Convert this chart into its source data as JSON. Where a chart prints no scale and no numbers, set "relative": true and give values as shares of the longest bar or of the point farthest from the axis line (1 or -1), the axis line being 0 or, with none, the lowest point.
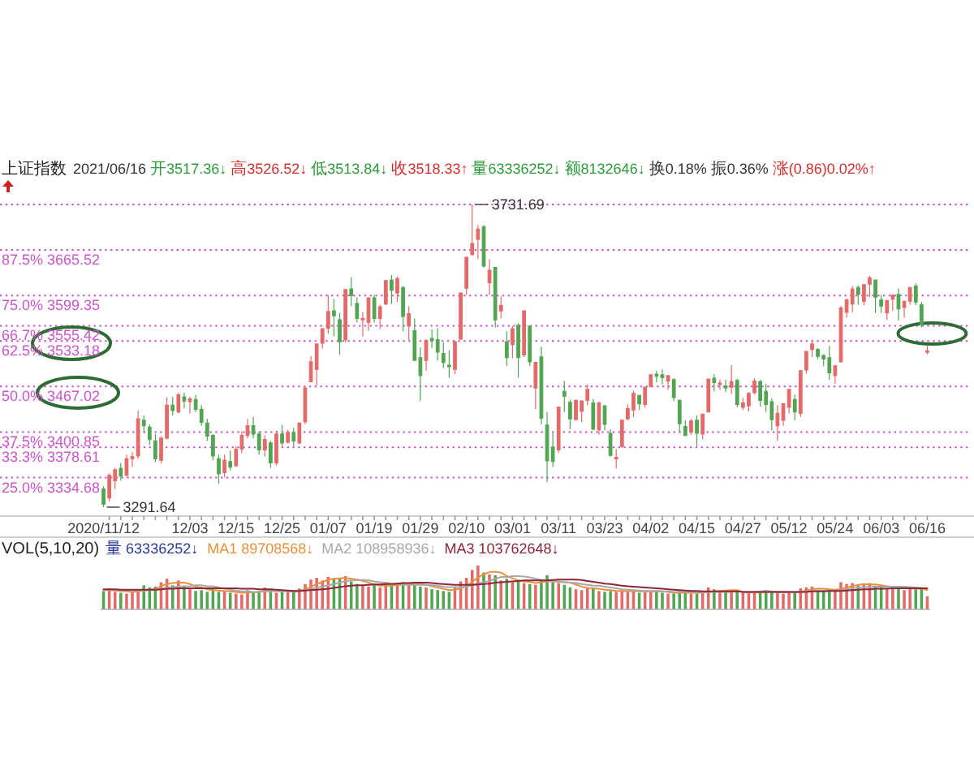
{
  "chart_data": [
    {
      "type": "candlestick",
      "title": "上证指数",
      "tick_labels": "x",
      "categories": [
        "2020/11/12",
        null,
        null,
        null,
        null,
        null,
        null,
        null,
        null,
        null,
        null,
        null,
        null,
        null,
        null,
        "12/03",
        null,
        null,
        null,
        null,
        null,
        null,
        null,
        "12/15",
        null,
        null,
        null,
        null,
        null,
        null,
        null,
        "12/25",
        null,
        null,
        null,
        null,
        null,
        null,
        null,
        "01/07",
        null,
        null,
        null,
        null,
        null,
        null,
        null,
        "01/19",
        null,
        null,
        null,
        null,
        null,
        null,
        null,
        "01/29",
        null,
        null,
        null,
        null,
        null,
        null,
        null,
        "02/10",
        null,
        null,
        null,
        null,
        null,
        null,
        null,
        "03/01",
        null,
        null,
        null,
        null,
        null,
        null,
        null,
        "03/11",
        null,
        null,
        null,
        null,
        null,
        null,
        null,
        "03/23",
        null,
        null,
        null,
        null,
        null,
        null,
        null,
        "04/02",
        null,
        null,
        null,
        null,
        null,
        null,
        null,
        "04/15",
        null,
        null,
        null,
        null,
        null,
        null,
        null,
        "04/27",
        null,
        null,
        null,
        null,
        null,
        null,
        null,
        "05/12",
        null,
        null,
        null,
        null,
        null,
        null,
        null,
        "05/24",
        null,
        null,
        null,
        null,
        null,
        null,
        null,
        "06/03",
        null,
        null,
        null,
        null,
        null,
        null,
        null,
        "06/16"
      ],
      "ohlc": [
        [
          3318,
          3322,
          3291.64,
          3296
        ],
        [
          3305,
          3341,
          3300,
          3338
        ],
        [
          3330,
          3349,
          3318,
          3346
        ],
        [
          3348,
          3356,
          3330,
          3337
        ],
        [
          3338,
          3368,
          3336,
          3362
        ],
        [
          3362,
          3372,
          3350,
          3365
        ],
        [
          3366,
          3432,
          3362,
          3420
        ],
        [
          3418,
          3425,
          3400,
          3410
        ],
        [
          3408,
          3412,
          3382,
          3390
        ],
        [
          3388,
          3398,
          3357,
          3362
        ],
        [
          3360,
          3395,
          3355,
          3392
        ],
        [
          3392,
          3451,
          3390,
          3440
        ],
        [
          3440,
          3452,
          3425,
          3432
        ],
        [
          3430,
          3458,
          3428,
          3455
        ],
        [
          3452,
          3458,
          3436,
          3446
        ],
        [
          3445,
          3452,
          3428,
          3449
        ],
        [
          3448,
          3455,
          3430,
          3434
        ],
        [
          3434,
          3440,
          3410,
          3415
        ],
        [
          3414,
          3420,
          3388,
          3395
        ],
        [
          3396,
          3398,
          3360,
          3366
        ],
        [
          3362,
          3368,
          3326,
          3340
        ],
        [
          3342,
          3368,
          3335,
          3360
        ],
        [
          3358,
          3374,
          3345,
          3350
        ],
        [
          3352,
          3380,
          3350,
          3376
        ],
        [
          3376,
          3402,
          3370,
          3396
        ],
        [
          3396,
          3420,
          3392,
          3410
        ],
        [
          3410,
          3423,
          3392,
          3398
        ],
        [
          3398,
          3402,
          3368,
          3375
        ],
        [
          3375,
          3396,
          3365,
          3390
        ],
        [
          3385,
          3388,
          3349,
          3356
        ],
        [
          3356,
          3403,
          3352,
          3398
        ],
        [
          3398,
          3411,
          3380,
          3385
        ],
        [
          3386,
          3404,
          3384,
          3400
        ],
        [
          3400,
          3407,
          3380,
          3388
        ],
        [
          3385,
          3415,
          3383,
          3414
        ],
        [
          3416,
          3467,
          3412,
          3465
        ],
        [
          3474,
          3511,
          3474,
          3503
        ],
        [
          3492,
          3529,
          3468,
          3529
        ],
        [
          3530,
          3551,
          3522,
          3551
        ],
        [
          3552,
          3600,
          3544,
          3576
        ],
        [
          3577,
          3594,
          3540,
          3570
        ],
        [
          3564,
          3574,
          3513,
          3532
        ],
        [
          3535,
          3608,
          3531,
          3608
        ],
        [
          3609,
          3626,
          3584,
          3599
        ],
        [
          3588,
          3597,
          3560,
          3566
        ],
        [
          3564,
          3575,
          3540,
          3566
        ],
        [
          3560,
          3597,
          3548,
          3596
        ],
        [
          3596,
          3600,
          3560,
          3566
        ],
        [
          3566,
          3586,
          3551,
          3583
        ],
        [
          3587,
          3622,
          3585,
          3621
        ],
        [
          3622,
          3629,
          3587,
          3607
        ],
        [
          3603,
          3627,
          3590,
          3624
        ],
        [
          3611,
          3613,
          3547,
          3569
        ],
        [
          3555,
          3584,
          3534,
          3573
        ],
        [
          3548,
          3566,
          3505,
          3505
        ],
        [
          3509,
          3524,
          3446,
          3483
        ],
        [
          3505,
          3536,
          3490,
          3534
        ],
        [
          3537,
          3550,
          3523,
          3534
        ],
        [
          3535,
          3552,
          3505,
          3517
        ],
        [
          3515,
          3531,
          3494,
          3502
        ],
        [
          3498,
          3520,
          3480,
          3496
        ],
        [
          3492,
          3534,
          3485,
          3532
        ],
        [
          3536,
          3604,
          3535,
          3603
        ],
        [
          3610,
          3656,
          3600,
          3655
        ],
        [
          3659,
          3731.69,
          3657,
          3675
        ],
        [
          3681,
          3702,
          3653,
          3696
        ],
        [
          3699,
          3702,
          3640,
          3642
        ],
        [
          3618,
          3652,
          3600,
          3636
        ],
        [
          3640,
          3641,
          3553,
          3564
        ],
        [
          3577,
          3598,
          3566,
          3585
        ],
        [
          3532,
          3547,
          3497,
          3509
        ],
        [
          3528,
          3555,
          3508,
          3551
        ],
        [
          3556,
          3559,
          3480,
          3509
        ],
        [
          3513,
          3577,
          3510,
          3577
        ],
        [
          3555,
          3555,
          3497,
          3503
        ],
        [
          3465,
          3502,
          3434,
          3502
        ],
        [
          3510,
          3525,
          3412,
          3421
        ],
        [
          3411,
          3430,
          3328,
          3359
        ],
        [
          3379,
          3399,
          3350,
          3358
        ],
        [
          3375,
          3437,
          3371,
          3437
        ],
        [
          3460,
          3475,
          3430,
          3453
        ],
        [
          3444,
          3448,
          3405,
          3420
        ],
        [
          3419,
          3448,
          3418,
          3447
        ],
        [
          3431,
          3447,
          3415,
          3446
        ],
        [
          3447,
          3470,
          3440,
          3463
        ],
        [
          3443,
          3449,
          3403,
          3405
        ],
        [
          3404,
          3445,
          3397,
          3443
        ],
        [
          3439,
          3440,
          3403,
          3412
        ],
        [
          3399,
          3405,
          3365,
          3367
        ],
        [
          3362,
          3376,
          3348,
          3364
        ],
        [
          3380,
          3419,
          3378,
          3418
        ],
        [
          3420,
          3441,
          3418,
          3435
        ],
        [
          3433,
          3461,
          3423,
          3457
        ],
        [
          3454,
          3454,
          3433,
          3442
        ],
        [
          3441,
          3466,
          3436,
          3466
        ],
        [
          3467,
          3485,
          3466,
          3484
        ],
        [
          3485,
          3490,
          3473,
          3482
        ],
        [
          3484,
          3492,
          3470,
          3480
        ],
        [
          3475,
          3483,
          3462,
          3483
        ],
        [
          3477,
          3479,
          3446,
          3451
        ],
        [
          3447,
          3448,
          3401,
          3413
        ],
        [
          3409,
          3418,
          3395,
          3396
        ],
        [
          3401,
          3420,
          3397,
          3417
        ],
        [
          3418,
          3425,
          3380,
          3399
        ],
        [
          3398,
          3427,
          3390,
          3427
        ],
        [
          3430,
          3478,
          3430,
          3478
        ],
        [
          3479,
          3485,
          3460,
          3473
        ],
        [
          3470,
          3477,
          3462,
          3472
        ],
        [
          3468,
          3477,
          3459,
          3465
        ],
        [
          3466,
          3498,
          3456,
          3474
        ],
        [
          3476,
          3478,
          3437,
          3441
        ],
        [
          3437,
          3450,
          3433,
          3443
        ],
        [
          3439,
          3459,
          3431,
          3457
        ],
        [
          3458,
          3479,
          3456,
          3475
        ],
        [
          3474,
          3477,
          3438,
          3447
        ],
        [
          3460,
          3471,
          3430,
          3441
        ],
        [
          3445,
          3450,
          3403,
          3419
        ],
        [
          3410,
          3440,
          3388,
          3428
        ],
        [
          3418,
          3443,
          3410,
          3442
        ],
        [
          3437,
          3463,
          3428,
          3463
        ],
        [
          3448,
          3455,
          3418,
          3430
        ],
        [
          3428,
          3491,
          3423,
          3490
        ],
        [
          3491,
          3519,
          3486,
          3518
        ],
        [
          3521,
          3535,
          3510,
          3529
        ],
        [
          3521,
          3523,
          3507,
          3511
        ],
        [
          3512,
          3514,
          3497,
          3507
        ],
        [
          3509,
          3526,
          3477,
          3487
        ],
        [
          3483,
          3498,
          3471,
          3497
        ],
        [
          3503,
          3584,
          3502,
          3581
        ],
        [
          3575,
          3595,
          3567,
          3593
        ],
        [
          3587,
          3613,
          3575,
          3609
        ],
        [
          3611,
          3614,
          3586,
          3601
        ],
        [
          3591,
          3616,
          3585,
          3615
        ],
        [
          3616,
          3628,
          3597,
          3625
        ],
        [
          3622,
          3622,
          3574,
          3597
        ],
        [
          3593,
          3600,
          3574,
          3584
        ],
        [
          3574,
          3592,
          3564,
          3592
        ],
        [
          3594,
          3601,
          3577,
          3600
        ],
        [
          3601,
          3610,
          3563,
          3580
        ],
        [
          3582,
          3592,
          3567,
          3591
        ],
        [
          3591,
          3611,
          3586,
          3611
        ],
        [
          3613,
          3617,
          3585,
          3590
        ],
        [
          3586,
          3590,
          3553,
          3557
        ],
        [
          3517.36,
          3526.52,
          3513.84,
          3518.33
        ]
      ],
      "colors": [
        "#52a552",
        "#e46a6a",
        "#e46a6a",
        "#52a552",
        "#e46a6a",
        "#e46a6a",
        "#e46a6a",
        "#52a552",
        "#52a552",
        "#52a552",
        "#e46a6a",
        "#e46a6a",
        "#52a552",
        "#e46a6a",
        "#52a552",
        "#e46a6a",
        "#52a552",
        "#52a552",
        "#52a552",
        "#52a552",
        "#52a552",
        "#e46a6a",
        "#52a552",
        "#e46a6a",
        "#e46a6a",
        "#e46a6a",
        "#52a552",
        "#52a552",
        "#e46a6a",
        "#52a552",
        "#e46a6a",
        "#52a552",
        "#e46a6a",
        "#52a552",
        "#e46a6a",
        "#e46a6a",
        "#e46a6a",
        "#e46a6a",
        "#e46a6a",
        "#e46a6a",
        "#52a552",
        "#52a552",
        "#e46a6a",
        "#52a552",
        "#52a552",
        "#e46a6a",
        "#e46a6a",
        "#52a552",
        "#e46a6a",
        "#e46a6a",
        "#52a552",
        "#e46a6a",
        "#52a552",
        "#e46a6a",
        "#52a552",
        "#52a552",
        "#e46a6a",
        "#52a552",
        "#52a552",
        "#52a552",
        "#52a552",
        "#e46a6a",
        "#e46a6a",
        "#e46a6a",
        "#e46a6a",
        "#e46a6a",
        "#52a552",
        "#e46a6a",
        "#52a552",
        "#e46a6a",
        "#52a552",
        "#e46a6a",
        "#52a552",
        "#e46a6a",
        "#52a552",
        "#e46a6a",
        "#52a552",
        "#52a552",
        "#52a552",
        "#e46a6a",
        "#52a552",
        "#52a552",
        "#e46a6a",
        "#e46a6a",
        "#e46a6a",
        "#52a552",
        "#e46a6a",
        "#52a552",
        "#52a552",
        "#e46a6a",
        "#e46a6a",
        "#e46a6a",
        "#e46a6a",
        "#52a552",
        "#e46a6a",
        "#e46a6a",
        "#52a552",
        "#52a552",
        "#e46a6a",
        "#52a552",
        "#52a552",
        "#52a552",
        "#e46a6a",
        "#52a552",
        "#e46a6a",
        "#e46a6a",
        "#52a552",
        "#e46a6a",
        "#52a552",
        "#e46a6a",
        "#52a552",
        "#e46a6a",
        "#e46a6a",
        "#e46a6a",
        "#52a552",
        "#52a552",
        "#52a552",
        "#e46a6a",
        "#e46a6a",
        "#e46a6a",
        "#52a552",
        "#e46a6a",
        "#e46a6a",
        "#e46a6a",
        "#52a552",
        "#52a552",
        "#52a552",
        "#e46a6a",
        "#e46a6a",
        "#e46a6a",
        "#e46a6a",
        "#52a552",
        "#e46a6a",
        "#e46a6a",
        "#52a552",
        "#52a552",
        "#e46a6a",
        "#e46a6a",
        "#52a552",
        "#e46a6a",
        "#e46a6a",
        "#52a552",
        "#52a552",
        "#e46a6a"
      ],
      "ref_lines": [
        {
          "axis": "y",
          "value": 3731.69,
          "color": "#cc55cc",
          "line_style": "dotted"
        },
        {
          "axis": "y",
          "value": 3665.52,
          "label": "87.5% 3665.52",
          "color": "#cc55cc",
          "line_style": "dotted"
        },
        {
          "axis": "y",
          "value": 3599.35,
          "label": "75.0% 3599.35",
          "color": "#cc55cc",
          "line_style": "dotted"
        },
        {
          "axis": "y",
          "value": 3555.42,
          "label": "66.7% 3555.42",
          "color": "#cc55cc",
          "line_style": "dotted"
        },
        {
          "axis": "y",
          "value": 3533.18,
          "label": "62.5% 3533.18",
          "color": "#cc55cc",
          "line_style": "dotted"
        },
        {
          "axis": "y",
          "value": 3467.02,
          "label": "50.0% 3467.02",
          "color": "#cc55cc",
          "line_style": "dotted"
        },
        {
          "axis": "y",
          "value": 3400.85,
          "label": "37.5% 3400.85",
          "color": "#cc55cc",
          "line_style": "dotted"
        },
        {
          "axis": "y",
          "value": 3378.61,
          "label": "33.3% 3378.61",
          "color": "#cc55cc",
          "line_style": "dotted"
        },
        {
          "axis": "y",
          "value": 3334.68,
          "label": "25.0% 3334.68",
          "color": "#cc55cc",
          "line_style": "dotted"
        }
      ],
      "annotations": [
        "2021/06/16",
        "开3517.36↓",
        "高3526.52↓",
        "低3513.84↓",
        "收3518.33↑",
        "量63336252↓",
        "额8132646↓",
        "换0.18%",
        "振0.36%",
        "涨(0.86)0.02%↑",
        {
          "text": "3731.69",
          "y": 3731.69
        },
        {
          "text": "3291.64",
          "x": "2020/11/12",
          "y": 3291.64
        }
      ]
    },
    {
      "type": "bar",
      "title": "VOL(5,10,20)",
      "relative": true,
      "legend": "top left",
      "annotations": [
        "量 63336252↓"
      ],
      "categories": [
        null,
        null,
        null,
        null,
        null,
        null,
        null,
        null,
        null,
        null,
        null,
        null,
        null,
        null,
        null,
        null,
        null,
        null,
        null,
        null,
        null,
        null,
        null,
        null,
        null,
        null,
        null,
        null,
        null,
        null,
        null,
        null,
        null,
        null,
        null,
        null,
        null,
        null,
        null,
        null,
        null,
        null,
        null,
        null,
        null,
        null,
        null,
        null,
        null,
        null,
        null,
        null,
        null,
        null,
        null,
        null,
        null,
        null,
        null,
        null,
        null,
        null,
        null,
        null,
        null,
        null,
        null,
        null,
        null,
        null,
        null,
        null,
        null,
        null,
        null,
        null,
        null,
        null,
        null,
        null,
        null,
        null,
        null,
        null,
        null,
        null,
        null,
        null,
        null,
        null,
        null,
        null,
        null,
        null,
        null,
        null,
        null,
        null,
        null,
        null,
        null,
        null,
        null,
        null,
        null,
        null,
        null,
        null,
        null,
        null,
        null,
        null,
        null,
        null,
        null,
        null,
        null,
        null,
        null,
        null,
        null,
        null,
        null,
        null,
        null,
        null,
        null,
        null,
        null,
        null,
        null,
        null,
        null,
        null,
        null,
        null,
        null,
        null,
        null,
        null,
        null,
        null,
        null,
        null
      ],
      "series": [
        {
          "values": [
            0.42,
            0.48,
            0.4,
            0.38,
            0.36,
            0.4,
            0.44,
            0.55,
            0.5,
            0.52,
            0.62,
            0.7,
            0.55,
            0.66,
            0.52,
            0.46,
            0.42,
            0.44,
            0.4,
            0.46,
            0.4,
            0.42,
            0.38,
            0.36,
            0.34,
            0.44,
            0.4,
            0.42,
            0.5,
            0.42,
            0.38,
            0.4,
            0.4,
            0.42,
            0.48,
            0.58,
            0.68,
            0.72,
            0.66,
            0.74,
            0.7,
            0.72,
            0.76,
            0.64,
            0.58,
            0.54,
            0.52,
            0.56,
            0.5,
            0.58,
            0.54,
            0.6,
            0.62,
            0.56,
            0.6,
            0.52,
            0.5,
            0.46,
            0.44,
            0.42,
            0.4,
            0.5,
            0.64,
            0.72,
            0.9,
            1,
            0.84,
            0.8,
            0.78,
            0.66,
            0.7,
            0.62,
            0.66,
            0.6,
            0.58,
            0.56,
            0.66,
            0.78,
            0.62,
            0.6,
            0.56,
            0.5,
            0.46,
            0.44,
            0.48,
            0.5,
            0.42,
            0.4,
            0.42,
            0.4,
            0.42,
            0.4,
            0.44,
            0.38,
            0.4,
            0.42,
            0.4,
            0.38,
            0.36,
            0.36,
            0.42,
            0.4,
            0.36,
            0.36,
            0.38,
            0.5,
            0.46,
            0.42,
            0.4,
            0.4,
            0.42,
            0.38,
            0.38,
            0.4,
            0.4,
            0.44,
            0.42,
            0.38,
            0.36,
            0.4,
            0.4,
            0.48,
            0.5,
            0.52,
            0.44,
            0.42,
            0.44,
            0.42,
            0.62,
            0.58,
            0.6,
            0.54,
            0.56,
            0.6,
            0.54,
            0.5,
            0.46,
            0.48,
            0.5,
            0.44,
            0.5,
            0.46,
            0.48,
            0.3
          ],
          "colors": [
            "#52a552",
            "#e46a6a",
            "#e46a6a",
            "#52a552",
            "#e46a6a",
            "#e46a6a",
            "#e46a6a",
            "#52a552",
            "#52a552",
            "#52a552",
            "#e46a6a",
            "#e46a6a",
            "#52a552",
            "#e46a6a",
            "#52a552",
            "#e46a6a",
            "#52a552",
            "#52a552",
            "#52a552",
            "#52a552",
            "#52a552",
            "#e46a6a",
            "#52a552",
            "#e46a6a",
            "#e46a6a",
            "#e46a6a",
            "#52a552",
            "#52a552",
            "#e46a6a",
            "#52a552",
            "#e46a6a",
            "#52a552",
            "#e46a6a",
            "#52a552",
            "#e46a6a",
            "#e46a6a",
            "#e46a6a",
            "#e46a6a",
            "#e46a6a",
            "#e46a6a",
            "#52a552",
            "#52a552",
            "#e46a6a",
            "#52a552",
            "#52a552",
            "#e46a6a",
            "#e46a6a",
            "#52a552",
            "#e46a6a",
            "#e46a6a",
            "#52a552",
            "#e46a6a",
            "#52a552",
            "#e46a6a",
            "#52a552",
            "#52a552",
            "#e46a6a",
            "#52a552",
            "#52a552",
            "#52a552",
            "#52a552",
            "#e46a6a",
            "#e46a6a",
            "#e46a6a",
            "#e46a6a",
            "#e46a6a",
            "#52a552",
            "#e46a6a",
            "#52a552",
            "#e46a6a",
            "#52a552",
            "#e46a6a",
            "#52a552",
            "#e46a6a",
            "#52a552",
            "#e46a6a",
            "#52a552",
            "#52a552",
            "#52a552",
            "#e46a6a",
            "#52a552",
            "#52a552",
            "#e46a6a",
            "#e46a6a",
            "#e46a6a",
            "#52a552",
            "#e46a6a",
            "#52a552",
            "#52a552",
            "#e46a6a",
            "#e46a6a",
            "#e46a6a",
            "#e46a6a",
            "#52a552",
            "#e46a6a",
            "#e46a6a",
            "#52a552",
            "#52a552",
            "#e46a6a",
            "#52a552",
            "#52a552",
            "#52a552",
            "#e46a6a",
            "#52a552",
            "#e46a6a",
            "#e46a6a",
            "#52a552",
            "#e46a6a",
            "#52a552",
            "#e46a6a",
            "#52a552",
            "#e46a6a",
            "#e46a6a",
            "#e46a6a",
            "#52a552",
            "#52a552",
            "#52a552",
            "#e46a6a",
            "#e46a6a",
            "#e46a6a",
            "#52a552",
            "#e46a6a",
            "#e46a6a",
            "#e46a6a",
            "#52a552",
            "#52a552",
            "#52a552",
            "#e46a6a",
            "#e46a6a",
            "#e46a6a",
            "#e46a6a",
            "#52a552",
            "#e46a6a",
            "#e46a6a",
            "#52a552",
            "#52a552",
            "#e46a6a",
            "#e46a6a",
            "#52a552",
            "#e46a6a",
            "#e46a6a",
            "#52a552",
            "#52a552",
            "#e46a6a"
          ]
        },
        {
          "type": "line",
          "name": "MA1 89708568↓",
          "color": "#e8903c",
          "values": [
            0.44,
            0.44,
            0.43,
            0.42,
            0.41,
            0.4,
            0.41,
            0.43,
            0.45,
            0.47,
            0.53,
            0.58,
            0.6,
            0.61,
            0.61,
            0.58,
            0.52,
            0.5,
            0.46,
            0.44,
            0.43,
            0.42,
            0.41,
            0.4,
            0.38,
            0.39,
            0.39,
            0.4,
            0.43,
            0.44,
            0.43,
            0.42,
            0.42,
            0.4,
            0.42,
            0.46,
            0.51,
            0.58,
            0.62,
            0.68,
            0.7,
            0.71,
            0.72,
            0.7,
            0.68,
            0.65,
            0.61,
            0.57,
            0.54,
            0.54,
            0.54,
            0.56,
            0.56,
            0.57,
            0.58,
            0.58,
            0.56,
            0.53,
            0.5,
            0.47,
            0.44,
            0.45,
            0.48,
            0.54,
            0.63,
            0.73,
            0.8,
            0.85,
            0.86,
            0.84,
            0.76,
            0.71,
            0.66,
            0.64,
            0.63,
            0.6,
            0.62,
            0.64,
            0.64,
            0.64,
            0.62,
            0.61,
            0.57,
            0.52,
            0.49,
            0.48,
            0.47,
            0.45,
            0.44,
            0.42,
            0.42,
            0.41,
            0.42,
            0.41,
            0.41,
            0.41,
            0.41,
            0.41,
            0.4,
            0.38,
            0.38,
            0.38,
            0.38,
            0.38,
            0.38,
            0.4,
            0.41,
            0.42,
            0.43,
            0.44,
            0.44,
            0.4,
            0.39,
            0.39,
            0.39,
            0.4,
            0.4,
            0.4,
            0.4,
            0.39,
            0.39,
            0.4,
            0.43,
            0.46,
            0.47,
            0.47,
            0.46,
            0.45,
            0.47,
            0.5,
            0.53,
            0.56,
            0.58,
            0.57,
            0.57,
            0.55,
            0.53,
            0.51,
            0.5,
            0.48,
            0.48,
            0.47,
            0.47,
            0.44
          ]
        },
        {
          "type": "line",
          "name": "MA2 108958936↓",
          "color": "#a8a8a8",
          "values": [
            0.45,
            0.45,
            0.44,
            0.44,
            0.43,
            0.43,
            0.43,
            0.43,
            0.44,
            0.44,
            0.47,
            0.5,
            0.51,
            0.52,
            0.53,
            0.53,
            0.55,
            0.55,
            0.53,
            0.53,
            0.5,
            0.47,
            0.45,
            0.43,
            0.41,
            0.41,
            0.4,
            0.4,
            0.41,
            0.41,
            0.41,
            0.41,
            0.41,
            0.41,
            0.42,
            0.44,
            0.46,
            0.5,
            0.52,
            0.55,
            0.58,
            0.61,
            0.65,
            0.66,
            0.67,
            0.67,
            0.66,
            0.64,
            0.62,
            0.61,
            0.59,
            0.58,
            0.57,
            0.56,
            0.56,
            0.56,
            0.56,
            0.55,
            0.54,
            0.52,
            0.51,
            0.51,
            0.51,
            0.52,
            0.55,
            0.59,
            0.62,
            0.65,
            0.7,
            0.74,
            0.74,
            0.76,
            0.76,
            0.75,
            0.73,
            0.7,
            0.67,
            0.65,
            0.65,
            0.63,
            0.62,
            0.61,
            0.6,
            0.58,
            0.56,
            0.54,
            0.54,
            0.52,
            0.5,
            0.48,
            0.46,
            0.45,
            0.44,
            0.43,
            0.42,
            0.42,
            0.42,
            0.41,
            0.41,
            0.4,
            0.4,
            0.4,
            0.4,
            0.4,
            0.39,
            0.4,
            0.4,
            0.4,
            0.4,
            0.4,
            0.41,
            0.4,
            0.4,
            0.4,
            0.41,
            0.42,
            0.41,
            0.4,
            0.4,
            0.4,
            0.4,
            0.4,
            0.41,
            0.42,
            0.43,
            0.43,
            0.43,
            0.43,
            0.44,
            0.46,
            0.48,
            0.5,
            0.51,
            0.51,
            0.52,
            0.52,
            0.52,
            0.52,
            0.52,
            0.52,
            0.51,
            0.5,
            0.49,
            0.48
          ]
        },
        {
          "type": "line",
          "name": "MA3 103762648↓",
          "color": "#8c2638",
          "values": [
            0.46,
            0.46,
            0.46,
            0.45,
            0.45,
            0.45,
            0.45,
            0.45,
            0.45,
            0.45,
            0.46,
            0.47,
            0.47,
            0.48,
            0.48,
            0.48,
            0.48,
            0.48,
            0.48,
            0.48,
            0.48,
            0.48,
            0.48,
            0.48,
            0.47,
            0.47,
            0.47,
            0.46,
            0.46,
            0.46,
            0.45,
            0.44,
            0.43,
            0.42,
            0.42,
            0.43,
            0.44,
            0.45,
            0.46,
            0.47,
            0.49,
            0.51,
            0.53,
            0.54,
            0.55,
            0.55,
            0.56,
            0.57,
            0.57,
            0.58,
            0.58,
            0.59,
            0.6,
            0.6,
            0.61,
            0.61,
            0.61,
            0.6,
            0.59,
            0.58,
            0.57,
            0.56,
            0.56,
            0.56,
            0.56,
            0.57,
            0.58,
            0.59,
            0.61,
            0.62,
            0.63,
            0.64,
            0.65,
            0.66,
            0.66,
            0.66,
            0.66,
            0.66,
            0.67,
            0.68,
            0.68,
            0.68,
            0.68,
            0.67,
            0.65,
            0.63,
            0.61,
            0.59,
            0.58,
            0.56,
            0.54,
            0.53,
            0.52,
            0.51,
            0.5,
            0.49,
            0.48,
            0.47,
            0.46,
            0.45,
            0.44,
            0.43,
            0.42,
            0.42,
            0.41,
            0.41,
            0.41,
            0.41,
            0.41,
            0.41,
            0.41,
            0.4,
            0.4,
            0.4,
            0.4,
            0.4,
            0.4,
            0.4,
            0.4,
            0.4,
            0.4,
            0.4,
            0.4,
            0.41,
            0.41,
            0.41,
            0.42,
            0.42,
            0.42,
            0.43,
            0.44,
            0.45,
            0.46,
            0.46,
            0.47,
            0.47,
            0.47,
            0.48,
            0.48,
            0.48,
            0.48,
            0.48,
            0.48,
            0.48
          ]
        }
      ]
    }
  ]
}
